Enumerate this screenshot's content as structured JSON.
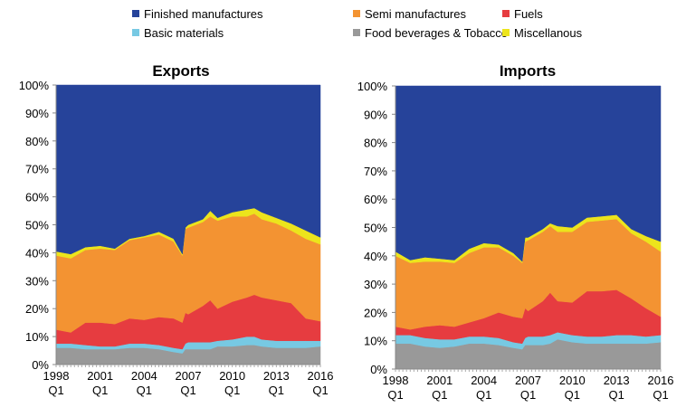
{
  "legend": {
    "placement": "top",
    "items": [
      {
        "key": "finished",
        "label": "Finished manufactures",
        "color": "#26439a"
      },
      {
        "key": "semi",
        "label": "Semi manufactures",
        "color": "#f39332"
      },
      {
        "key": "fuels",
        "label": "Fuels",
        "color": "#e63c40"
      },
      {
        "key": "basic",
        "label": "Basic materials",
        "color": "#77c9e3"
      },
      {
        "key": "food",
        "label": "Food beverages & Tobacco",
        "color": "#999999"
      },
      {
        "key": "misc",
        "label": "Miscellanous",
        "color": "#ece41c"
      }
    ]
  },
  "chart_data": [
    {
      "type": "area",
      "stacked": true,
      "title": "Exports",
      "xlim": [
        1998,
        2016
      ],
      "ylim": [
        0,
        100
      ],
      "x_tick_labels": [
        [
          "1998",
          "Q1"
        ],
        [
          "2001",
          "Q1"
        ],
        [
          "2004",
          "Q1"
        ],
        [
          "2007",
          "Q1"
        ],
        [
          "2010",
          "Q1"
        ],
        [
          "2013",
          "Q1"
        ],
        [
          "2016",
          "Q1"
        ]
      ],
      "y_tick_labels": [
        "0%",
        "10%",
        "20%",
        "30%",
        "40%",
        "50%",
        "60%",
        "70%",
        "80%",
        "90%",
        "100%"
      ],
      "grid": false,
      "x": [
        1998,
        1999,
        2000,
        2001,
        2002,
        2003,
        2004,
        2005,
        2006,
        2006.6,
        2006.8,
        2007,
        2008,
        2008.5,
        2009,
        2010,
        2011,
        2011.5,
        2012,
        2013,
        2014,
        2015,
        2016
      ],
      "series": [
        {
          "name": "Food beverages & Tobacco",
          "key": "food",
          "values": [
            6,
            6,
            5.5,
            5.5,
            5.5,
            6,
            6,
            5.5,
            4.5,
            4,
            5.5,
            5.5,
            5.5,
            5.5,
            6.5,
            6.5,
            7,
            7,
            6.5,
            6,
            6,
            6,
            6.5
          ]
        },
        {
          "name": "Basic materials",
          "key": "basic",
          "values": [
            1.5,
            1.5,
            1.5,
            1,
            1,
            1.5,
            1.5,
            1.5,
            1.5,
            1.5,
            2,
            2.5,
            2.5,
            2.5,
            2,
            2.5,
            3,
            3,
            2.5,
            2.5,
            2.5,
            2.5,
            2
          ]
        },
        {
          "name": "Fuels",
          "key": "fuels",
          "values": [
            5,
            4,
            8,
            8.5,
            8,
            9,
            8.5,
            10,
            10.5,
            9.5,
            11,
            10,
            13,
            15,
            11.5,
            13.5,
            14,
            15,
            15,
            14.5,
            13.5,
            8,
            7
          ]
        },
        {
          "name": "Semi manufactures",
          "key": "semi",
          "values": [
            26.5,
            26.5,
            26,
            26.5,
            26.5,
            28,
            29.5,
            29.5,
            27.5,
            24,
            30,
            31,
            30,
            30,
            31.5,
            30.5,
            29,
            29,
            28,
            27.5,
            26,
            28.5,
            27.5
          ]
        },
        {
          "name": "Miscellanous",
          "key": "misc",
          "values": [
            1.5,
            1.5,
            1,
            1,
            0.5,
            0.5,
            0.5,
            1,
            1,
            0.5,
            0.5,
            1,
            1,
            2,
            1,
            1.5,
            2.5,
            2,
            2.5,
            2,
            2.5,
            3,
            2.5
          ]
        },
        {
          "name": "Finished manufactures",
          "key": "finished",
          "values": [
            59.5,
            60.5,
            58,
            57.5,
            58.5,
            55,
            54,
            52.5,
            55,
            60.5,
            51,
            50,
            48,
            45,
            47.5,
            45.5,
            44.5,
            44,
            45.5,
            47.5,
            49.5,
            52,
            54.5
          ]
        }
      ]
    },
    {
      "type": "area",
      "stacked": true,
      "title": "Imports",
      "xlim": [
        1998,
        2016
      ],
      "ylim": [
        0,
        100
      ],
      "x_tick_labels": [
        [
          "1998",
          "Q1"
        ],
        [
          "2001",
          "Q1"
        ],
        [
          "2004",
          "Q1"
        ],
        [
          "2007",
          "Q1"
        ],
        [
          "2010",
          "Q1"
        ],
        [
          "2013",
          "Q1"
        ],
        [
          "2016",
          "Q1"
        ]
      ],
      "y_tick_labels": [
        "0%",
        "10%",
        "20%",
        "30%",
        "40%",
        "50%",
        "60%",
        "70%",
        "80%",
        "90%",
        "100%"
      ],
      "grid": false,
      "x": [
        1998,
        1999,
        2000,
        2001,
        2002,
        2003,
        2004,
        2005,
        2006,
        2006.6,
        2006.8,
        2007,
        2008,
        2008.5,
        2009,
        2010,
        2011,
        2012,
        2013,
        2014,
        2015,
        2016
      ],
      "series": [
        {
          "name": "Food beverages & Tobacco",
          "key": "food",
          "values": [
            9,
            9,
            8,
            7.5,
            8,
            9,
            9,
            8.5,
            7.5,
            7,
            8.5,
            8.5,
            8.5,
            9,
            10.5,
            9.5,
            9,
            9,
            9,
            9,
            9,
            9.5
          ]
        },
        {
          "name": "Basic materials",
          "key": "basic",
          "values": [
            3,
            3,
            3,
            3,
            2.5,
            2.5,
            2.5,
            2.5,
            2,
            2,
            2.5,
            3,
            3,
            3,
            2.5,
            2.5,
            2.5,
            2.5,
            3,
            3,
            2.5,
            2.5
          ]
        },
        {
          "name": "Fuels",
          "key": "fuels",
          "values": [
            3,
            2,
            4,
            5,
            4.5,
            5,
            6.5,
            9,
            9,
            9,
            10.5,
            9,
            12.5,
            15,
            11,
            11.5,
            16,
            16,
            16,
            13,
            10,
            6.5
          ]
        },
        {
          "name": "Semi manufactures",
          "key": "semi",
          "values": [
            25,
            23.5,
            23,
            22.5,
            22.5,
            24.5,
            25,
            23,
            21.5,
            19.5,
            23.5,
            25,
            24.5,
            23.5,
            24.5,
            25,
            24.5,
            25,
            25,
            23,
            23.5,
            23
          ]
        },
        {
          "name": "Miscellanous",
          "key": "misc",
          "values": [
            1.5,
            1,
            1.5,
            1,
            1,
            1.5,
            1.5,
            1,
            1,
            0.5,
            1.5,
            1,
            1,
            1,
            2,
            1.5,
            1.5,
            1.5,
            1.5,
            1.5,
            2,
            3.5
          ]
        },
        {
          "name": "Finished manufactures",
          "key": "finished",
          "values": [
            58.5,
            61.5,
            60.5,
            61,
            61.5,
            57.5,
            55.5,
            56,
            59,
            62,
            53.5,
            53.5,
            50.5,
            48.5,
            49.5,
            50,
            46.5,
            46,
            45.5,
            50.5,
            53,
            55
          ]
        }
      ]
    }
  ]
}
